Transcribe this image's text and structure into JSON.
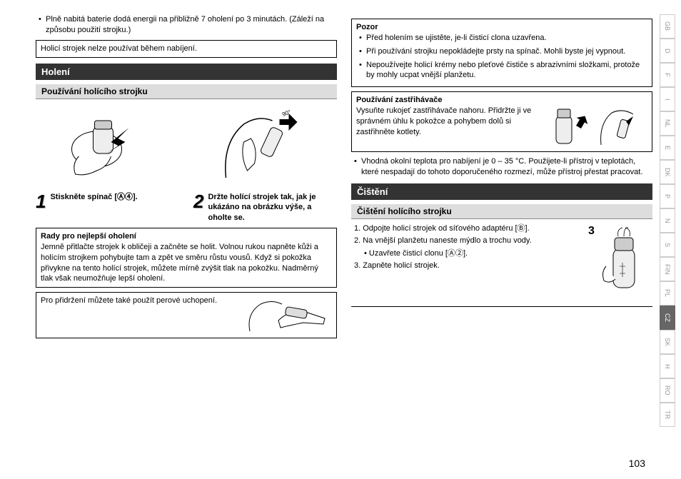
{
  "left": {
    "topBullet": "Plně nabitá baterie dodá energii na přibližně 7 oholení po 3 minutách. (Záleží na způsobu použití strojku.)",
    "chargeWarn": "Holicí strojek nelze používat během nabíjení.",
    "section": "Holení",
    "subsection": "Používání holícího strojku",
    "step1": "Stiskněte spínač [Ⓐ④].",
    "step2": "Držte holící strojek tak, jak je ukázáno na obrázku výše, a oholte se.",
    "tipsTitle": "Rady pro nejlepší oholení",
    "tipsBody": "Jemně přitlačte strojek k obličeji a začněte se holit. Volnou rukou napněte kůži a holícím strojkem pohybujte tam a zpět ve směru růstu vousů. Když si pokožka přivykne na tento holící strojek, můžete mírně zvýšit tlak na pokožku. Nadměrný tlak však neumožňuje lepší oholení.",
    "penGrip": "Pro přidržení můžete také použít perové uchopení."
  },
  "right": {
    "pozorTitle": "Pozor",
    "pozor1": "Před holením se ujistěte, je-li čisticí clona uzavřena.",
    "pozor2": "Při používání strojku nepokládejte prsty na spínač. Mohli byste jej vypnout.",
    "pozor3": "Nepoužívejte holicí krémy nebo pleťové čističe s abrazivními složkami, protože by mohly ucpat vnější planžetu.",
    "trimmerTitle": "Používání zastřihávače",
    "trimmerBody": "Vysuňte rukojeť zastřihávače nahoru. Přidržte ji ve správném úhlu k pokožce a pohybem dolů si zastřihněte kotlety.",
    "tempBullet": "Vhodná okolní teplota pro nabíjení je 0 – 35 °C. Použijete-li přístroj v teplotách, které nespadají do tohoto doporučeného rozmezí, může přístroj přestat pracovat.",
    "cleanSection": "Čištění",
    "cleanSub": "Čištění holícího strojku",
    "clean1": "Odpojte holicí strojek od síťového adaptéru [Ⓑ].",
    "clean2": "Na vnější planžetu naneste mýdlo a trochu vody.",
    "clean2sub": "Uzavřete čisticí clonu [Ⓐ②].",
    "clean3": "Zapněte holicí strojek.",
    "cleanFigNum": "3"
  },
  "tabs": [
    "GB",
    "D",
    "F",
    "I",
    "NL",
    "E",
    "DK",
    "P",
    "N",
    "S",
    "FIN",
    "PL",
    "CZ",
    "SK",
    "H",
    "RO",
    "TR"
  ],
  "activeTab": "CZ",
  "pageNum": "103"
}
